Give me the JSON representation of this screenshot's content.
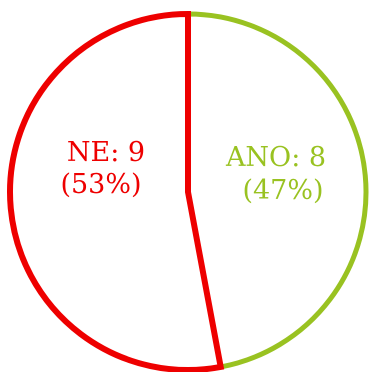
{
  "chart_data": {
    "type": "pie",
    "slices": [
      {
        "label": "NE",
        "value": 9,
        "percent": "53%",
        "color": "#ee0000"
      },
      {
        "label": "ANO",
        "value": 8,
        "percent": "47%",
        "color": "#99c221"
      }
    ],
    "title": "",
    "legend": "none",
    "style": "outline-only"
  },
  "text": {
    "ne_value": "NE: 9",
    "ne_percent": "(53%)",
    "ano_value": "ANO: 8",
    "ano_percent": "(47%)"
  }
}
